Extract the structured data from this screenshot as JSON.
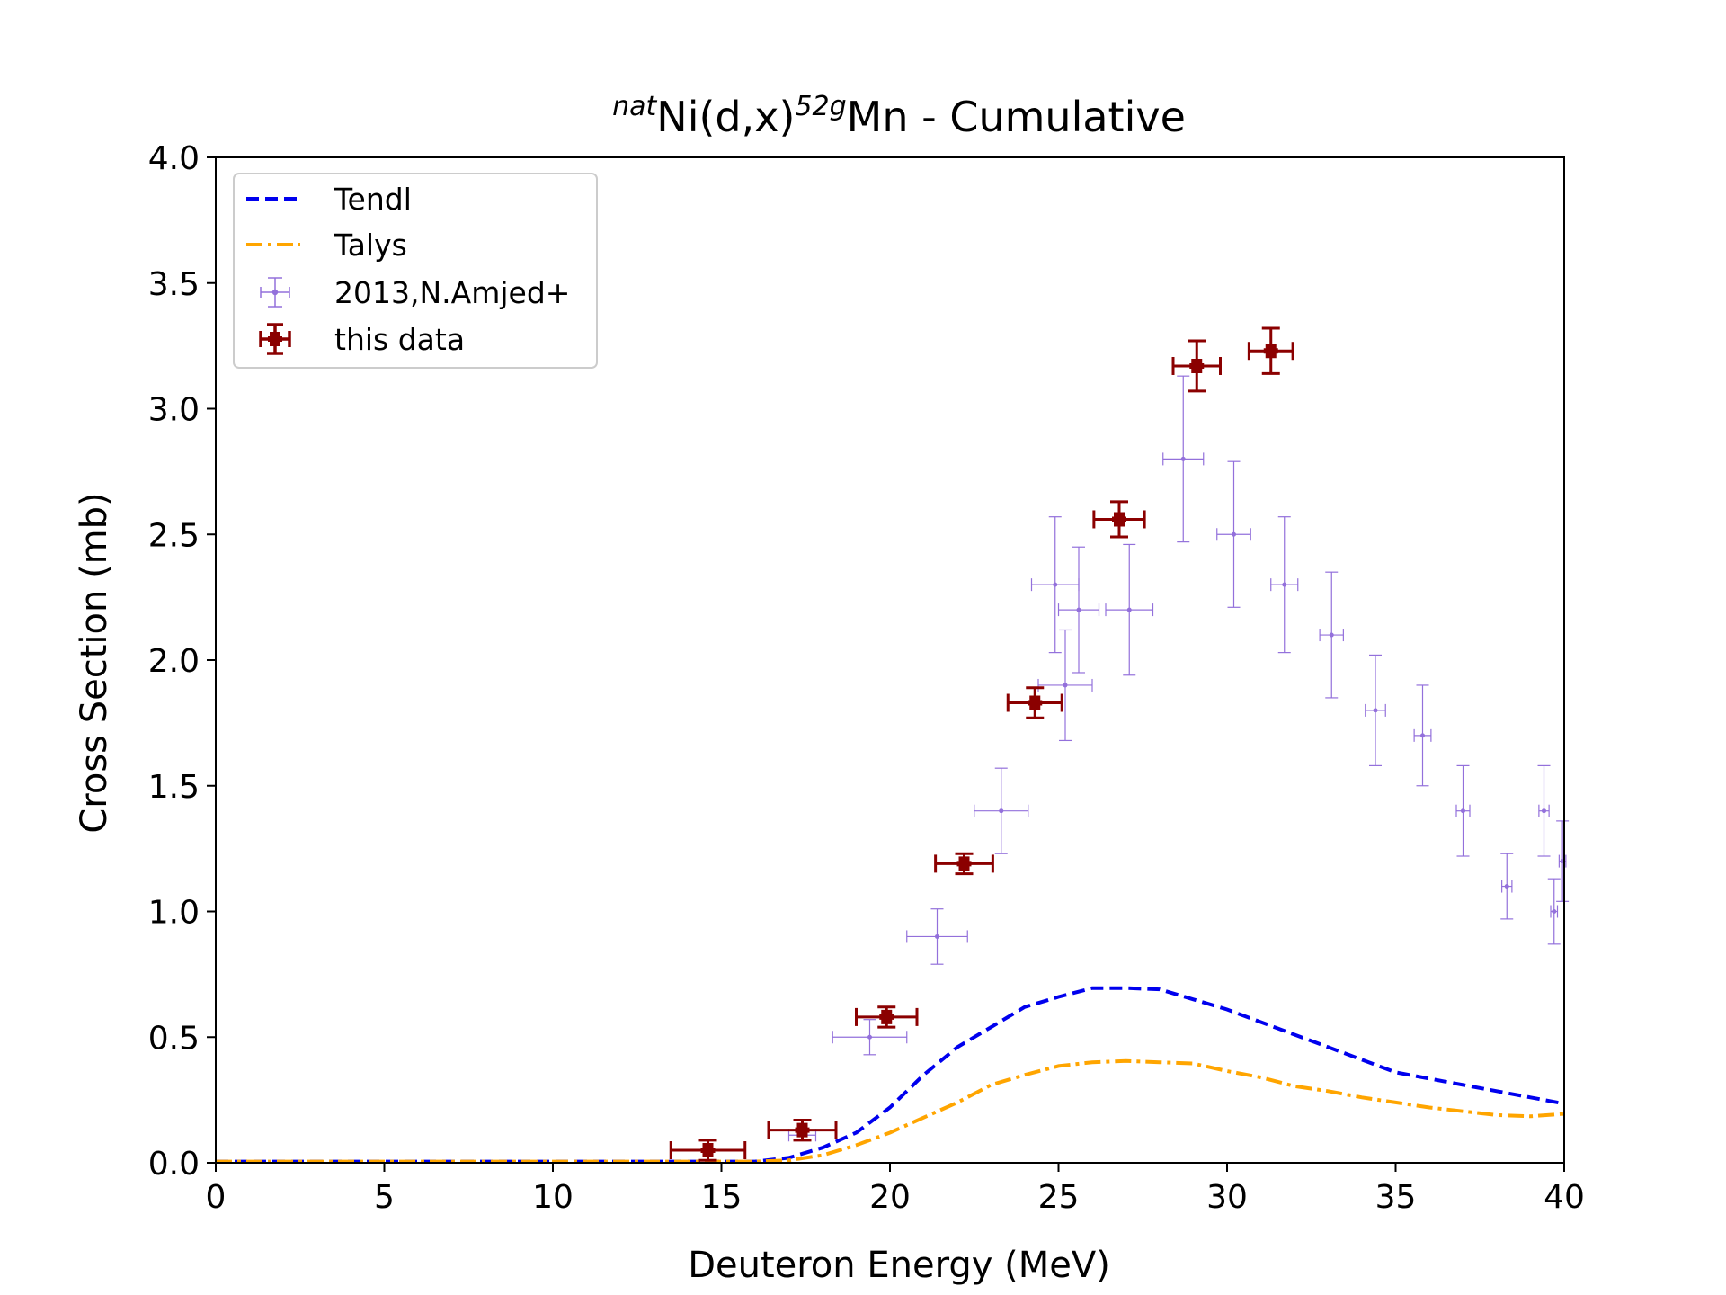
{
  "chart_data": {
    "type": "scatter",
    "title": {
      "prefix_sup": "nat",
      "target": "Ni(d,x)",
      "product_sup": "52g",
      "suffix": "Mn - Cumulative"
    },
    "xlabel": "Deuteron Energy (MeV)",
    "ylabel": "Cross Section (mb)",
    "xlim": [
      0,
      40
    ],
    "ylim": [
      0,
      4.0
    ],
    "x_ticks": [
      0,
      5,
      10,
      15,
      20,
      25,
      30,
      35,
      40
    ],
    "x_tick_labels": [
      "0",
      "5",
      "10",
      "15",
      "20",
      "25",
      "30",
      "35",
      "40"
    ],
    "y_ticks": [
      0,
      0.5,
      1.0,
      1.5,
      2.0,
      2.5,
      3.0,
      3.5,
      4.0
    ],
    "y_tick_labels": [
      "0.0",
      "0.5",
      "1.0",
      "1.5",
      "2.0",
      "2.5",
      "3.0",
      "3.5",
      "4.0"
    ],
    "grid": false,
    "legend_position": "top-left",
    "series": [
      {
        "name": "Tendl",
        "kind": "line",
        "style": "dashed",
        "color": "#0000ee",
        "x": [
          0,
          5,
          10,
          12,
          14,
          15,
          16,
          17,
          18,
          19,
          20,
          21,
          22,
          23,
          24,
          25,
          26,
          27,
          28,
          29,
          30,
          31,
          32,
          33,
          34,
          35,
          36,
          37,
          38,
          39,
          40
        ],
        "y": [
          0.005,
          0.005,
          0.005,
          0.005,
          0.005,
          0.005,
          0.005,
          0.02,
          0.06,
          0.12,
          0.22,
          0.35,
          0.46,
          0.54,
          0.62,
          0.66,
          0.695,
          0.695,
          0.69,
          0.65,
          0.61,
          0.56,
          0.51,
          0.46,
          0.41,
          0.36,
          0.335,
          0.31,
          0.285,
          0.26,
          0.235
        ]
      },
      {
        "name": "Talys",
        "kind": "line",
        "style": "dashdot",
        "color": "#ffa500",
        "x": [
          0,
          5,
          10,
          12,
          14,
          15,
          16,
          17,
          18,
          19,
          20,
          21,
          22,
          23,
          24,
          25,
          26,
          27,
          28,
          29,
          30,
          31,
          32,
          33,
          34,
          35,
          36,
          37,
          38,
          39,
          40
        ],
        "y": [
          0.005,
          0.005,
          0.005,
          0.005,
          0.005,
          0.005,
          0.005,
          0.01,
          0.03,
          0.07,
          0.12,
          0.18,
          0.24,
          0.31,
          0.35,
          0.385,
          0.4,
          0.405,
          0.4,
          0.395,
          0.365,
          0.34,
          0.305,
          0.285,
          0.26,
          0.24,
          0.22,
          0.205,
          0.19,
          0.185,
          0.195
        ]
      },
      {
        "name": "2013,N.Amjed+",
        "kind": "errorbar",
        "color": "#9370db",
        "points": [
          {
            "x": 17.4,
            "y": 0.11,
            "xerr": 0.4,
            "yerr": 0.02
          },
          {
            "x": 19.4,
            "y": 0.5,
            "xerr": 1.1,
            "yerr": 0.07
          },
          {
            "x": 21.4,
            "y": 0.9,
            "xerr": 0.9,
            "yerr": 0.11
          },
          {
            "x": 23.3,
            "y": 1.4,
            "xerr": 0.8,
            "yerr": 0.17
          },
          {
            "x": 24.9,
            "y": 2.3,
            "xerr": 0.7,
            "yerr": 0.27
          },
          {
            "x": 25.2,
            "y": 1.9,
            "xerr": 0.8,
            "yerr": 0.22
          },
          {
            "x": 25.6,
            "y": 2.2,
            "xerr": 0.6,
            "yerr": 0.25
          },
          {
            "x": 27.1,
            "y": 2.2,
            "xerr": 0.7,
            "yerr": 0.26
          },
          {
            "x": 28.7,
            "y": 2.8,
            "xerr": 0.6,
            "yerr": 0.33
          },
          {
            "x": 30.2,
            "y": 2.5,
            "xerr": 0.5,
            "yerr": 0.29
          },
          {
            "x": 31.7,
            "y": 2.3,
            "xerr": 0.4,
            "yerr": 0.27
          },
          {
            "x": 33.1,
            "y": 2.1,
            "xerr": 0.35,
            "yerr": 0.25
          },
          {
            "x": 34.4,
            "y": 1.8,
            "xerr": 0.3,
            "yerr": 0.22
          },
          {
            "x": 35.8,
            "y": 1.7,
            "xerr": 0.25,
            "yerr": 0.2
          },
          {
            "x": 37.0,
            "y": 1.4,
            "xerr": 0.2,
            "yerr": 0.18
          },
          {
            "x": 38.3,
            "y": 1.1,
            "xerr": 0.15,
            "yerr": 0.13
          },
          {
            "x": 39.4,
            "y": 1.4,
            "xerr": 0.15,
            "yerr": 0.18
          },
          {
            "x": 39.7,
            "y": 1.0,
            "xerr": 0.1,
            "yerr": 0.13
          },
          {
            "x": 39.95,
            "y": 1.2,
            "xerr": 0.1,
            "yerr": 0.16
          }
        ]
      },
      {
        "name": "this data",
        "kind": "errorbar",
        "color": "#8b0000",
        "points": [
          {
            "x": 14.6,
            "y": 0.05,
            "xerr": 1.1,
            "yerr": 0.04
          },
          {
            "x": 17.4,
            "y": 0.13,
            "xerr": 1.0,
            "yerr": 0.04
          },
          {
            "x": 19.9,
            "y": 0.58,
            "xerr": 0.9,
            "yerr": 0.04
          },
          {
            "x": 22.2,
            "y": 1.19,
            "xerr": 0.85,
            "yerr": 0.04
          },
          {
            "x": 24.3,
            "y": 1.83,
            "xerr": 0.8,
            "yerr": 0.06
          },
          {
            "x": 26.8,
            "y": 2.56,
            "xerr": 0.75,
            "yerr": 0.07
          },
          {
            "x": 29.1,
            "y": 3.17,
            "xerr": 0.7,
            "yerr": 0.1
          },
          {
            "x": 31.3,
            "y": 3.23,
            "xerr": 0.65,
            "yerr": 0.09
          }
        ]
      }
    ]
  }
}
